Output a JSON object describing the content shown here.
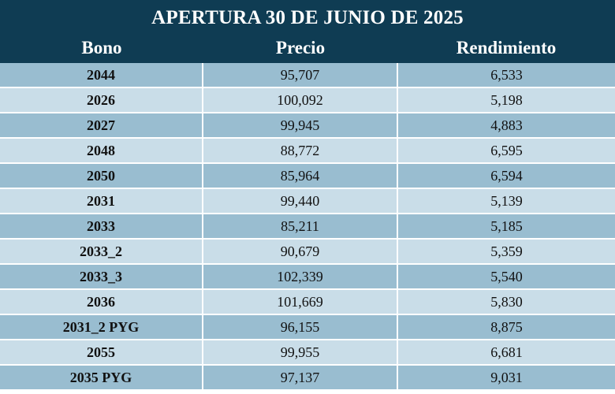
{
  "table": {
    "title": "APERTURA 30 DE JUNIO DE 2025",
    "headers": {
      "bono": "Bono",
      "precio": "Precio",
      "rendimiento": "Rendimiento"
    },
    "rows": [
      {
        "bono": "2044",
        "precio": "95,707",
        "rendimiento": "6,533"
      },
      {
        "bono": "2026",
        "precio": "100,092",
        "rendimiento": "5,198"
      },
      {
        "bono": "2027",
        "precio": "99,945",
        "rendimiento": "4,883"
      },
      {
        "bono": "2048",
        "precio": "88,772",
        "rendimiento": "6,595"
      },
      {
        "bono": "2050",
        "precio": "85,964",
        "rendimiento": "6,594"
      },
      {
        "bono": "2031",
        "precio": "99,440",
        "rendimiento": "5,139"
      },
      {
        "bono": "2033",
        "precio": "85,211",
        "rendimiento": "5,185"
      },
      {
        "bono": "2033_2",
        "precio": "90,679",
        "rendimiento": "5,359"
      },
      {
        "bono": "2033_3",
        "precio": "102,339",
        "rendimiento": "5,540"
      },
      {
        "bono": "2036",
        "precio": "101,669",
        "rendimiento": "5,830"
      },
      {
        "bono": "2031_2 PYG",
        "precio": "96,155",
        "rendimiento": "8,875"
      },
      {
        "bono": "2055",
        "precio": "99,955",
        "rendimiento": "6,681"
      },
      {
        "bono": "2035 PYG",
        "precio": "97,137",
        "rendimiento": "9,031"
      }
    ]
  },
  "colors": {
    "header_bg": "#0f3c53",
    "row_dark": "#99bdd0",
    "row_light": "#c9dde8"
  }
}
